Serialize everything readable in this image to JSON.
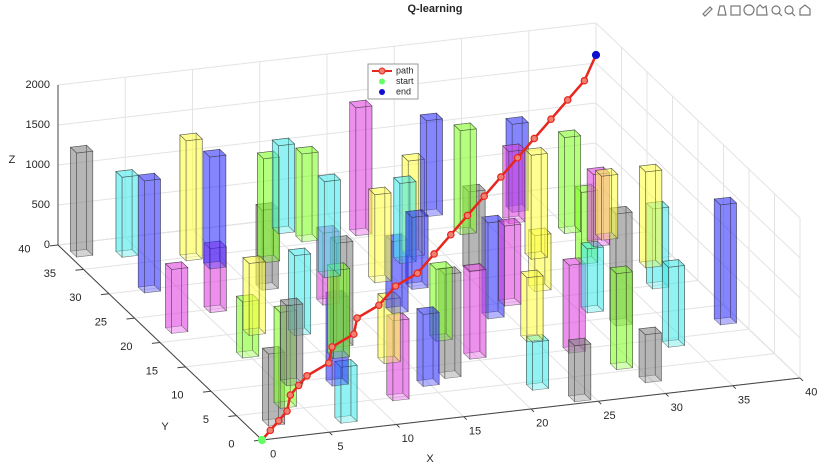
{
  "chart_data": {
    "type": "bar3d",
    "title": "Q-learning",
    "xlabel": "X",
    "ylabel": "Y",
    "zlabel": "Z",
    "xlim": [
      0,
      40
    ],
    "ylim": [
      0,
      40
    ],
    "zlim": [
      0,
      2000
    ],
    "xticks": [
      0,
      5,
      10,
      15,
      20,
      25,
      30,
      35,
      40
    ],
    "yticks": [
      0,
      5,
      10,
      15,
      20,
      25,
      30,
      35,
      40
    ],
    "zticks": [
      0,
      500,
      1000,
      1500,
      2000
    ],
    "grid": true,
    "legend": "top",
    "bars": {
      "x": [
        2,
        4,
        7,
        9,
        12,
        14,
        17,
        19,
        22,
        24,
        27,
        29,
        32,
        34,
        37,
        3,
        6,
        8,
        11,
        13,
        16,
        18,
        21,
        23,
        26,
        28,
        31,
        33,
        36,
        38,
        1,
        5,
        10,
        15,
        20,
        25,
        30,
        35,
        4,
        9,
        14,
        19,
        24,
        29,
        34,
        39,
        2,
        7,
        12,
        17,
        22,
        27,
        32,
        37,
        6,
        11,
        16,
        21,
        26,
        31
      ],
      "y": [
        3,
        6,
        2,
        9,
        5,
        12,
        8,
        15,
        4,
        18,
        10,
        22,
        14,
        26,
        20,
        30,
        25,
        35,
        28,
        33,
        38,
        21,
        36,
        31,
        27,
        34,
        17,
        37,
        29,
        24,
        38,
        16,
        19,
        7,
        11,
        13,
        3,
        32,
        37,
        33,
        24,
        27,
        1,
        6,
        9,
        12,
        22,
        20,
        16,
        36,
        30,
        38,
        35,
        30,
        10,
        14,
        29,
        25,
        20,
        28
      ],
      "values": [
        900,
        1200,
        700,
        1100,
        1000,
        800,
        1300,
        900,
        600,
        1200,
        1100,
        700,
        1400,
        900,
        1000,
        1400,
        800,
        1500,
        1000,
        1300,
        1100,
        900,
        1600,
        1200,
        1000,
        1300,
        800,
        1100,
        900,
        1200,
        1300,
        700,
        1000,
        900,
        1100,
        800,
        600,
        1200,
        1000,
        1400,
        900,
        1100,
        700,
        1200,
        1000,
        1500,
        800,
        900,
        1300,
        1100,
        1000,
        1200,
        900,
        800,
        1000,
        1100,
        1200,
        900,
        1000,
        1300
      ],
      "colors": [
        "#808080",
        "#7fff20",
        "#40e8e8",
        "#2a2aff",
        "#e040e0",
        "#ffff40",
        "#808080",
        "#7fff20",
        "#40e8e8",
        "#2a2aff",
        "#e040e0",
        "#ffff40",
        "#808080",
        "#7fff20",
        "#40e8e8",
        "#2a2aff",
        "#e040e0",
        "#ffff40",
        "#808080",
        "#7fff20",
        "#40e8e8",
        "#2a2aff",
        "#e040e0",
        "#ffff40",
        "#808080",
        "#7fff20",
        "#40e8e8",
        "#2a2aff",
        "#e040e0",
        "#ffff40",
        "#808080",
        "#7fff20",
        "#40e8e8",
        "#2a2aff",
        "#e040e0",
        "#ffff40",
        "#808080",
        "#7fff20",
        "#40e8e8",
        "#2a2aff",
        "#e040e0",
        "#ffff40",
        "#808080",
        "#7fff20",
        "#40e8e8",
        "#2a2aff",
        "#e040e0",
        "#ffff40",
        "#808080",
        "#7fff20",
        "#40e8e8",
        "#2a2aff",
        "#e040e0",
        "#ffff40",
        "#808080",
        "#7fff20",
        "#40e8e8",
        "#2a2aff",
        "#e040e0",
        "#ffff40"
      ]
    },
    "series": [
      {
        "name": "path",
        "color": "#e8261e",
        "x": [
          0,
          1,
          2,
          3,
          4,
          5,
          6,
          8,
          9,
          11,
          12,
          14,
          16,
          18,
          20,
          22,
          24,
          26,
          28,
          30,
          32,
          34,
          36,
          38,
          40
        ],
        "y": [
          0,
          1,
          2,
          3,
          5,
          6,
          7,
          8,
          10,
          11,
          13,
          14,
          16,
          17,
          19,
          21,
          23,
          25,
          27,
          29,
          31,
          33,
          35,
          37,
          40
        ],
        "z": [
          0,
          40,
          80,
          120,
          180,
          220,
          260,
          320,
          380,
          440,
          500,
          560,
          640,
          700,
          780,
          860,
          940,
          1020,
          1100,
          1180,
          1260,
          1340,
          1420,
          1500,
          1600
        ]
      },
      {
        "name": "start",
        "color": "#66ff66",
        "x": [
          0
        ],
        "y": [
          0
        ],
        "z": [
          0
        ]
      },
      {
        "name": "end",
        "color": "#1010d0",
        "x": [
          40
        ],
        "y": [
          40
        ],
        "z": [
          1600
        ]
      }
    ]
  }
}
